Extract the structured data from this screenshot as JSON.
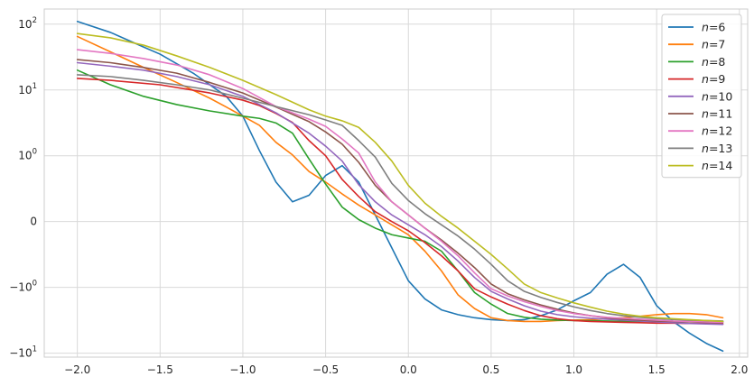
{
  "chart_data": {
    "type": "line",
    "yscale": "symlog",
    "xlim": [
      -2.2,
      2.05
    ],
    "ylim": [
      -11.5,
      170
    ],
    "grid": true,
    "legend_position": "top-right",
    "x_ticks": [
      {
        "value": -2.0,
        "label": "−2.0"
      },
      {
        "value": -1.5,
        "label": "−1.5"
      },
      {
        "value": -1.0,
        "label": "−1.0"
      },
      {
        "value": -0.5,
        "label": "−0.5"
      },
      {
        "value": 0.0,
        "label": "0.0"
      },
      {
        "value": 0.5,
        "label": "0.5"
      },
      {
        "value": 1.0,
        "label": "1.0"
      },
      {
        "value": 1.5,
        "label": "1.5"
      },
      {
        "value": 2.0,
        "label": "2.0"
      }
    ],
    "y_ticks": [
      {
        "value": 100,
        "base": "10",
        "exp": "2"
      },
      {
        "value": 10,
        "base": "10",
        "exp": "1"
      },
      {
        "value": 1,
        "base": "10",
        "exp": "0"
      },
      {
        "value": 0,
        "base": "0",
        "exp": ""
      },
      {
        "value": -1,
        "base": "−10",
        "exp": "0"
      },
      {
        "value": -10,
        "base": "−10",
        "exp": "1"
      }
    ],
    "series": [
      {
        "name": "n=6",
        "prefix": "n",
        "suffix": "=6",
        "color": "#1f77b4",
        "x": [
          -2.0,
          -1.8,
          -1.6,
          -1.5,
          -1.3,
          -1.1,
          -1.0,
          -0.9,
          -0.8,
          -0.7,
          -0.6,
          -0.5,
          -0.4,
          -0.3,
          -0.2,
          -0.1,
          0.0,
          0.1,
          0.2,
          0.3,
          0.4,
          0.5,
          0.6,
          0.7,
          0.8,
          0.9,
          1.0,
          1.1,
          1.2,
          1.3,
          1.4,
          1.5,
          1.6,
          1.7,
          1.8,
          1.9
        ],
        "y": [
          110,
          75,
          45,
          35,
          18,
          8,
          4,
          1.2,
          0.6,
          0.3,
          0.4,
          0.7,
          0.85,
          0.6,
          0.1,
          -0.4,
          -0.9,
          -1.5,
          -2.2,
          -2.6,
          -2.9,
          -3.1,
          -3.2,
          -3.1,
          -2.7,
          -2.2,
          -1.6,
          -1.2,
          -0.8,
          -0.65,
          -0.85,
          -1.9,
          -3.3,
          -5,
          -7.1,
          -9.3
        ]
      },
      {
        "name": "n=7",
        "prefix": "n",
        "suffix": "=7",
        "color": "#ff7f0e",
        "x": [
          -2.0,
          -1.8,
          -1.6,
          -1.4,
          -1.2,
          -1.1,
          -1.0,
          -0.9,
          -0.8,
          -0.7,
          -0.6,
          -0.5,
          -0.4,
          -0.3,
          -0.2,
          -0.1,
          0.0,
          0.1,
          0.2,
          0.3,
          0.4,
          0.5,
          0.6,
          0.7,
          0.8,
          0.9,
          1.0,
          1.1,
          1.2,
          1.3,
          1.4,
          1.5,
          1.6,
          1.7,
          1.8,
          1.9
        ],
        "y": [
          65,
          38,
          22,
          13,
          7.5,
          5.5,
          4,
          2.9,
          1.6,
          1.03,
          0.76,
          0.6,
          0.42,
          0.25,
          0.1,
          -0.05,
          -0.2,
          -0.45,
          -0.75,
          -1.3,
          -2.1,
          -2.9,
          -3.2,
          -3.3,
          -3.3,
          -3.2,
          -3.15,
          -3.1,
          -3.0,
          -2.9,
          -2.75,
          -2.6,
          -2.5,
          -2.5,
          -2.6,
          -2.9
        ]
      },
      {
        "name": "n=8",
        "prefix": "n",
        "suffix": "=8",
        "color": "#2ca02c",
        "x": [
          -2.0,
          -1.8,
          -1.6,
          -1.4,
          -1.2,
          -1.0,
          -0.9,
          -0.8,
          -0.7,
          -0.6,
          -0.5,
          -0.4,
          -0.3,
          -0.2,
          -0.1,
          0.0,
          0.1,
          0.2,
          0.3,
          0.4,
          0.5,
          0.6,
          0.7,
          0.8,
          0.9,
          1.0,
          1.1,
          1.2,
          1.3,
          1.4,
          1.5,
          1.6,
          1.7,
          1.8,
          1.9
        ],
        "y": [
          20,
          12,
          8,
          6,
          4.8,
          4,
          3.7,
          3.15,
          2.2,
          0.95,
          0.57,
          0.22,
          0.03,
          -0.1,
          -0.2,
          -0.25,
          -0.3,
          -0.45,
          -0.75,
          -1.2,
          -1.8,
          -2.5,
          -2.85,
          -3.05,
          -3.15,
          -3.2,
          -3.22,
          -3.25,
          -3.28,
          -3.3,
          -3.3,
          -3.3,
          -3.3,
          -3.3,
          -3.3
        ]
      },
      {
        "name": "n=9",
        "prefix": "n",
        "suffix": "=9",
        "color": "#d62728",
        "x": [
          -2.0,
          -1.8,
          -1.5,
          -1.2,
          -1.0,
          -0.9,
          -0.8,
          -0.7,
          -0.6,
          -0.5,
          -0.4,
          -0.3,
          -0.2,
          -0.1,
          0.0,
          0.1,
          0.2,
          0.3,
          0.4,
          0.5,
          0.6,
          0.7,
          0.8,
          0.9,
          1.0,
          1.1,
          1.2,
          1.3,
          1.4,
          1.5,
          1.6,
          1.7,
          1.8,
          1.9
        ],
        "y": [
          15,
          14,
          12,
          9,
          7,
          5.8,
          4.4,
          3.2,
          1.7,
          1.0,
          0.64,
          0.38,
          0.15,
          0.0,
          -0.14,
          -0.32,
          -0.52,
          -0.75,
          -1.05,
          -1.4,
          -1.8,
          -2.25,
          -2.7,
          -3.0,
          -3.2,
          -3.3,
          -3.35,
          -3.4,
          -3.45,
          -3.5,
          -3.5,
          -3.55,
          -3.55,
          -3.6
        ]
      },
      {
        "name": "n=10",
        "prefix": "n",
        "suffix": "=10",
        "color": "#9467bd",
        "x": [
          -2.0,
          -1.8,
          -1.6,
          -1.4,
          -1.2,
          -1.0,
          -0.8,
          -0.6,
          -0.5,
          -0.4,
          -0.3,
          -0.2,
          -0.1,
          0.0,
          0.1,
          0.2,
          0.3,
          0.4,
          0.5,
          0.6,
          0.7,
          0.8,
          0.9,
          1.0,
          1.1,
          1.2,
          1.3,
          1.4,
          1.5,
          1.6,
          1.7,
          1.8,
          1.9
        ],
        "y": [
          26,
          23,
          20,
          16,
          12,
          8,
          4.5,
          2.2,
          1.4,
          0.92,
          0.56,
          0.3,
          0.1,
          -0.05,
          -0.2,
          -0.38,
          -0.6,
          -0.85,
          -1.15,
          -1.5,
          -1.9,
          -2.3,
          -2.6,
          -2.8,
          -2.95,
          -3.05,
          -3.15,
          -3.25,
          -3.35,
          -3.45,
          -3.55,
          -3.6,
          -3.65
        ]
      },
      {
        "name": "n=11",
        "prefix": "n",
        "suffix": "=11",
        "color": "#8c564b",
        "x": [
          -2.0,
          -1.8,
          -1.6,
          -1.4,
          -1.2,
          -1.0,
          -0.8,
          -0.6,
          -0.5,
          -0.4,
          -0.3,
          -0.2,
          -0.1,
          0.0,
          0.1,
          0.2,
          0.3,
          0.4,
          0.5,
          0.6,
          0.7,
          0.8,
          0.9,
          1.0,
          1.1,
          1.2,
          1.3,
          1.4,
          1.5,
          1.6,
          1.7,
          1.8,
          1.9
        ],
        "y": [
          29,
          26,
          22,
          18,
          13,
          9,
          5.5,
          3.3,
          2.3,
          1.5,
          0.9,
          0.55,
          0.3,
          0.1,
          -0.1,
          -0.28,
          -0.48,
          -0.7,
          -0.95,
          -1.25,
          -1.55,
          -1.85,
          -2.15,
          -2.45,
          -2.7,
          -2.9,
          -3.05,
          -3.15,
          -3.25,
          -3.3,
          -3.35,
          -3.4,
          -3.45
        ]
      },
      {
        "name": "n=12",
        "prefix": "n",
        "suffix": "=12",
        "color": "#e377c2",
        "x": [
          -2.0,
          -1.8,
          -1.6,
          -1.4,
          -1.2,
          -1.0,
          -0.8,
          -0.6,
          -0.5,
          -0.4,
          -0.3,
          -0.2,
          -0.1,
          0.0,
          0.1,
          0.2,
          0.3,
          0.4,
          0.5,
          0.6,
          0.7,
          0.8,
          0.9,
          1.0,
          1.1,
          1.2,
          1.3,
          1.4,
          1.5,
          1.6,
          1.7,
          1.8,
          1.9
        ],
        "y": [
          41,
          36,
          30,
          24,
          17,
          10.5,
          5.6,
          3.6,
          2.8,
          1.8,
          1.1,
          0.6,
          0.3,
          0.1,
          -0.1,
          -0.3,
          -0.52,
          -0.78,
          -1.05,
          -1.35,
          -1.65,
          -1.95,
          -2.25,
          -2.5,
          -2.7,
          -2.85,
          -2.95,
          -3.05,
          -3.15,
          -3.25,
          -3.3,
          -3.35,
          -3.4
        ]
      },
      {
        "name": "n=13",
        "prefix": "n",
        "suffix": "=13",
        "color": "#7f7f7f",
        "x": [
          -2.0,
          -1.8,
          -1.6,
          -1.4,
          -1.2,
          -1.0,
          -0.8,
          -0.6,
          -0.5,
          -0.4,
          -0.3,
          -0.2,
          -0.1,
          0.0,
          0.1,
          0.2,
          0.3,
          0.4,
          0.5,
          0.6,
          0.7,
          0.8,
          0.9,
          1.0,
          1.1,
          1.2,
          1.3,
          1.4,
          1.5,
          1.6,
          1.7,
          1.8,
          1.9
        ],
        "y": [
          17,
          16,
          14,
          12,
          10,
          7.5,
          5.6,
          4.2,
          3.5,
          2.9,
          1.7,
          0.98,
          0.58,
          0.32,
          0.12,
          -0.05,
          -0.22,
          -0.42,
          -0.65,
          -0.9,
          -1.15,
          -1.42,
          -1.7,
          -1.98,
          -2.25,
          -2.5,
          -2.7,
          -2.85,
          -2.98,
          -3.08,
          -3.15,
          -3.2,
          -3.25
        ]
      },
      {
        "name": "n=14",
        "prefix": "n",
        "suffix": "=14",
        "color": "#bcbd22",
        "x": [
          -2.0,
          -1.8,
          -1.6,
          -1.4,
          -1.2,
          -1.0,
          -0.8,
          -0.6,
          -0.5,
          -0.4,
          -0.3,
          -0.2,
          -0.1,
          0.0,
          0.1,
          0.2,
          0.3,
          0.4,
          0.5,
          0.6,
          0.7,
          0.8,
          0.9,
          1.0,
          1.1,
          1.2,
          1.3,
          1.4,
          1.5,
          1.6,
          1.7,
          1.8,
          1.9
        ],
        "y": [
          72,
          62,
          48,
          33,
          22,
          14,
          8.5,
          5,
          4,
          3.4,
          2.7,
          1.6,
          0.92,
          0.55,
          0.28,
          0.08,
          -0.1,
          -0.3,
          -0.5,
          -0.72,
          -0.95,
          -1.2,
          -1.45,
          -1.72,
          -2.0,
          -2.3,
          -2.55,
          -2.75,
          -2.9,
          -3.0,
          -3.1,
          -3.2,
          -3.3
        ]
      }
    ]
  }
}
